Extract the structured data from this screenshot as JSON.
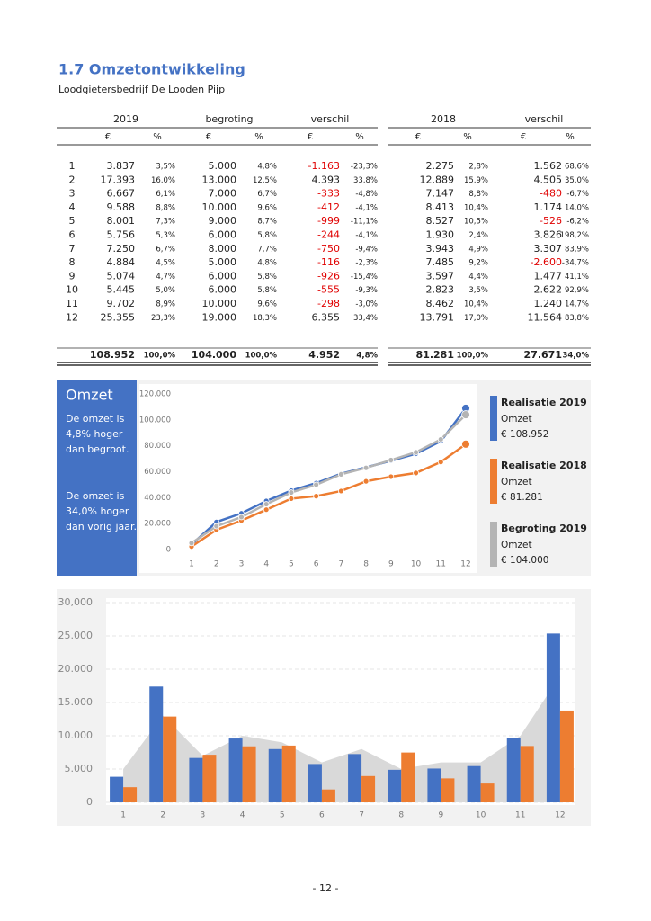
{
  "header": {
    "title": "1.7 Omzetontwikkeling",
    "subtitle": "Loodgietersbedrijf De Looden Pijp"
  },
  "table": {
    "groups": [
      "2019",
      "begroting",
      "verschil",
      "2018",
      "verschil"
    ],
    "units": [
      "€",
      "%",
      "€",
      "%",
      "€",
      "%",
      "€",
      "%",
      "€",
      "%"
    ],
    "rows": [
      [
        "1",
        "3.837",
        "3,5%",
        "5.000",
        "4,8%",
        "-1.163",
        "-23,3%",
        "2.275",
        "2,8%",
        "1.562",
        "68,6%"
      ],
      [
        "2",
        "17.393",
        "16,0%",
        "13.000",
        "12,5%",
        "4.393",
        "33,8%",
        "12.889",
        "15,9%",
        "4.505",
        "35,0%"
      ],
      [
        "3",
        "6.667",
        "6,1%",
        "7.000",
        "6,7%",
        "-333",
        "-4,8%",
        "7.147",
        "8,8%",
        "-480",
        "-6,7%"
      ],
      [
        "4",
        "9.588",
        "8,8%",
        "10.000",
        "9,6%",
        "-412",
        "-4,1%",
        "8.413",
        "10,4%",
        "1.174",
        "14,0%"
      ],
      [
        "5",
        "8.001",
        "7,3%",
        "9.000",
        "8,7%",
        "-999",
        "-11,1%",
        "8.527",
        "10,5%",
        "-526",
        "-6,2%"
      ],
      [
        "6",
        "5.756",
        "5,3%",
        "6.000",
        "5,8%",
        "-244",
        "-4,1%",
        "1.930",
        "2,4%",
        "3.826",
        "198,2%"
      ],
      [
        "7",
        "7.250",
        "6,7%",
        "8.000",
        "7,7%",
        "-750",
        "-9,4%",
        "3.943",
        "4,9%",
        "3.307",
        "83,9%"
      ],
      [
        "8",
        "4.884",
        "4,5%",
        "5.000",
        "4,8%",
        "-116",
        "-2,3%",
        "7.485",
        "9,2%",
        "-2.600",
        "-34,7%"
      ],
      [
        "9",
        "5.074",
        "4,7%",
        "6.000",
        "5,8%",
        "-926",
        "-15,4%",
        "3.597",
        "4,4%",
        "1.477",
        "41,1%"
      ],
      [
        "10",
        "5.445",
        "5,0%",
        "6.000",
        "5,8%",
        "-555",
        "-9,3%",
        "2.823",
        "3,5%",
        "2.622",
        "92,9%"
      ],
      [
        "11",
        "9.702",
        "8,9%",
        "10.000",
        "9,6%",
        "-298",
        "-3,0%",
        "8.462",
        "10,4%",
        "1.240",
        "14,7%"
      ],
      [
        "12",
        "25.355",
        "23,3%",
        "19.000",
        "18,3%",
        "6.355",
        "33,4%",
        "13.791",
        "17,0%",
        "11.564",
        "83,8%"
      ]
    ],
    "totals": [
      "108.952",
      "100,0%",
      "104.000",
      "100,0%",
      "4.952",
      "4,8%",
      "81.281",
      "100,0%",
      "27.671",
      "34,0%"
    ]
  },
  "sidebar": {
    "title": "Omzet",
    "notes": [
      [
        "De omzet is",
        "4,8% hoger",
        "dan begroot."
      ],
      [
        "De omzet is",
        "34,0% hoger",
        "dan vorig jaar."
      ]
    ]
  },
  "chart_data": [
    {
      "type": "line",
      "categories": [
        "1",
        "2",
        "3",
        "4",
        "5",
        "6",
        "7",
        "8",
        "9",
        "10",
        "11",
        "12"
      ],
      "ylim": [
        0,
        120000
      ],
      "yticks": [
        0,
        {
          "value": 20000,
          "label": "20.000"
        },
        {
          "value": 40000,
          "label": "40.000"
        },
        {
          "value": 60000,
          "label": "60.000"
        },
        {
          "value": 80000,
          "label": "80.000"
        },
        {
          "value": 100000,
          "label": "100.000"
        },
        {
          "value": 120000,
          "label": "120.000"
        }
      ],
      "series": [
        {
          "name": "Realisatie 2019",
          "color": "#4472c4",
          "legend_lines": [
            "Omzet",
            "€ 108.952"
          ],
          "values": [
            3837,
            21230,
            27897,
            37485,
            45486,
            51242,
            58492,
            63376,
            68450,
            73895,
            83597,
            108952
          ]
        },
        {
          "name": "Realisatie 2018",
          "color": "#ed7d31",
          "legend_lines": [
            "Omzet",
            "€ 81.281"
          ],
          "values": [
            2275,
            15164,
            22311,
            30724,
            39251,
            41181,
            45124,
            52609,
            56206,
            59029,
            67491,
            81281
          ]
        },
        {
          "name": "Begroting 2019",
          "color": "#b4b4b4",
          "legend_lines": [
            "Omzet",
            "€ 104.000"
          ],
          "values": [
            5000,
            18000,
            25000,
            35000,
            44000,
            50000,
            58000,
            63000,
            69000,
            75000,
            85000,
            104000
          ]
        }
      ]
    },
    {
      "type": "bar",
      "categories": [
        "1",
        "2",
        "3",
        "4",
        "5",
        "6",
        "7",
        "8",
        "9",
        "10",
        "11",
        "12"
      ],
      "ylim": [
        0,
        30000
      ],
      "yticks": [
        0,
        {
          "value": 5000,
          "label": "5.000"
        },
        {
          "value": 10000,
          "label": "10.000"
        },
        {
          "value": 15000,
          "label": "15.000"
        },
        {
          "value": 20000,
          "label": "20.000"
        },
        {
          "value": 25000,
          "label": "25.000"
        },
        {
          "value": 30000,
          "label": "30,000"
        }
      ],
      "grid": true,
      "series": [
        {
          "kind": "area",
          "color": "#d9d9d9",
          "values": [
            5000,
            13000,
            7000,
            10000,
            9000,
            6000,
            8000,
            5000,
            6000,
            6000,
            10000,
            19000
          ]
        },
        {
          "kind": "bar",
          "color": "#4472c4",
          "values": [
            3837,
            17393,
            6667,
            9588,
            8001,
            5756,
            7250,
            4884,
            5074,
            5445,
            9702,
            25355
          ]
        },
        {
          "kind": "bar",
          "color": "#ed7d31",
          "values": [
            2275,
            12889,
            7147,
            8413,
            8527,
            1930,
            3943,
            7485,
            3597,
            2823,
            8462,
            13791
          ]
        }
      ]
    }
  ],
  "footer": {
    "page": "- 12 -"
  }
}
